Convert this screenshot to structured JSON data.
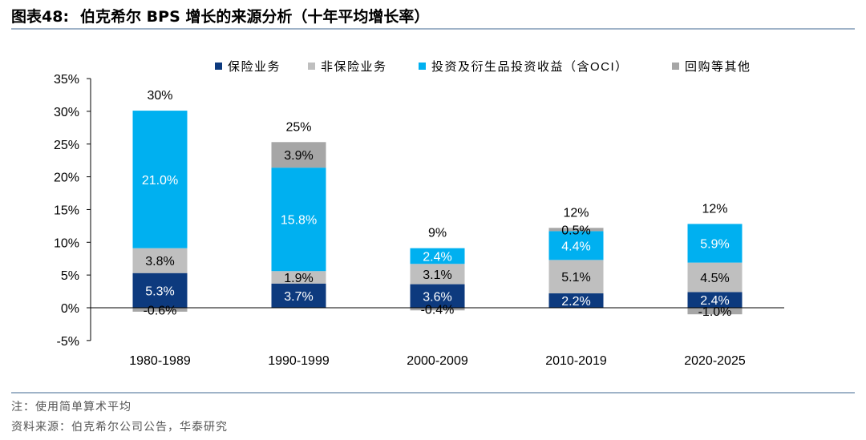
{
  "header": {
    "figure_label": "图表48:",
    "title": "伯克希尔 BPS 增长的来源分析（十年平均增长率）"
  },
  "footer": {
    "note": "注：使用简单算术平均",
    "source": "资料来源：伯克希尔公司公告，华泰研究"
  },
  "chart_data": {
    "type": "bar",
    "stacked": true,
    "categories": [
      "1980-1989",
      "1990-1999",
      "2000-2009",
      "2010-2019",
      "2020-2025"
    ],
    "series": [
      {
        "name": "保险业务",
        "color": "#0d3a7e",
        "label_color": "#ffffff",
        "values": [
          5.3,
          3.7,
          3.6,
          2.2,
          2.4
        ],
        "labels": [
          "5.3%",
          "3.7%",
          "3.6%",
          "2.2%",
          "2.4%"
        ]
      },
      {
        "name": "非保险业务",
        "color": "#bfbfbf",
        "label_color": "#000000",
        "values": [
          3.8,
          1.9,
          3.1,
          5.1,
          4.5
        ],
        "labels": [
          "3.8%",
          "1.9%",
          "3.1%",
          "5.1%",
          "4.5%"
        ]
      },
      {
        "name": "投资及衍生品投资收益（含OCI）",
        "color": "#00b0f0",
        "label_color": "#ffffff",
        "values": [
          21.0,
          15.8,
          2.4,
          4.4,
          5.9
        ],
        "labels": [
          "21.0%",
          "15.8%",
          "2.4%",
          "4.4%",
          "5.9%"
        ]
      },
      {
        "name": "回购等其他",
        "color": "#a6a6a6",
        "label_color": "#000000",
        "values": [
          -0.6,
          3.9,
          -0.4,
          0.5,
          -1.0
        ],
        "labels": [
          "-0.6%",
          "3.9%",
          "-0.4%",
          "0.5%",
          "-1.0%"
        ]
      }
    ],
    "totals": [
      "30%",
      "25%",
      "9%",
      "12%",
      "12%"
    ],
    "total_values": [
      30,
      25,
      9,
      12,
      12
    ],
    "ylim": [
      -5,
      35
    ],
    "yticks": [
      -5,
      0,
      5,
      10,
      15,
      20,
      25,
      30,
      35
    ],
    "ytick_labels": [
      "-5%",
      "0%",
      "5%",
      "10%",
      "15%",
      "20%",
      "25%",
      "30%",
      "35%"
    ],
    "legend_position": "top",
    "grid": false
  }
}
